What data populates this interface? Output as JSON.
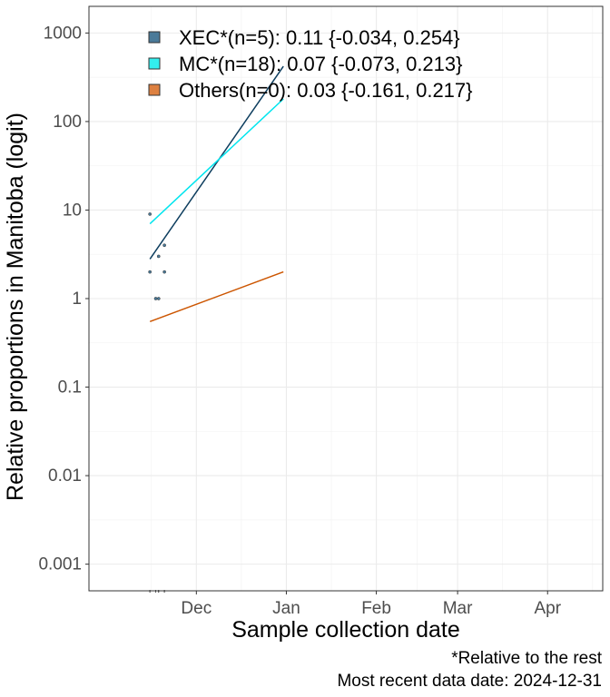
{
  "chart_data": {
    "type": "line",
    "xlabel": "Sample collection date",
    "ylabel": "Relative proportions in Manitoba (logit)",
    "y_scale": "log",
    "ylim": [
      0.0005,
      2000
    ],
    "xlim": [
      "2024-10-25",
      "2025-04-20"
    ],
    "grid": true,
    "legend_position": "top-left",
    "x_ticks": [
      {
        "date": "2024-12-01",
        "label": "Dec"
      },
      {
        "date": "2025-01-01",
        "label": "Jan"
      },
      {
        "date": "2025-02-01",
        "label": "Feb"
      },
      {
        "date": "2025-03-01",
        "label": "Mar"
      },
      {
        "date": "2025-04-01",
        "label": "Apr"
      }
    ],
    "y_ticks": [
      {
        "value": 0.001,
        "label": "0.001"
      },
      {
        "value": 0.01,
        "label": "0.01"
      },
      {
        "value": 0.1,
        "label": "0.1"
      },
      {
        "value": 1,
        "label": "1"
      },
      {
        "value": 10,
        "label": "10"
      },
      {
        "value": 100,
        "label": "100"
      },
      {
        "value": 1000,
        "label": "1000"
      }
    ],
    "series": [
      {
        "name": "XEC*(n=5): 0.11 {-0.034, 0.254}",
        "color": "#4a7a99",
        "line_color": "#0d3d5e",
        "fit": [
          {
            "x": "2024-11-15",
            "y": 2.8
          },
          {
            "x": "2024-12-31",
            "y": 420
          }
        ],
        "points": [
          {
            "x": "2024-11-15",
            "y": 9
          },
          {
            "x": "2024-11-15",
            "y": 2
          },
          {
            "x": "2024-11-17",
            "y": 1
          },
          {
            "x": "2024-11-18",
            "y": 1
          },
          {
            "x": "2024-11-18",
            "y": 3
          },
          {
            "x": "2024-11-20",
            "y": 4
          },
          {
            "x": "2024-11-20",
            "y": 2
          }
        ]
      },
      {
        "name": "MC*(n=18): 0.07 {-0.073, 0.213}",
        "color": "#33eeee",
        "line_color": "#00e5ee",
        "fit": [
          {
            "x": "2024-11-15",
            "y": 7
          },
          {
            "x": "2024-12-31",
            "y": 180
          }
        ],
        "points": []
      },
      {
        "name": "Others(n=0): 0.03 {-0.161, 0.217}",
        "color": "#dd8040",
        "line_color": "#cc5500",
        "fit": [
          {
            "x": "2024-11-15",
            "y": 0.55
          },
          {
            "x": "2024-12-31",
            "y": 2
          }
        ],
        "points": []
      }
    ],
    "caption": [
      "*Relative to the rest",
      "Most recent data date: 2024-12-31"
    ]
  }
}
